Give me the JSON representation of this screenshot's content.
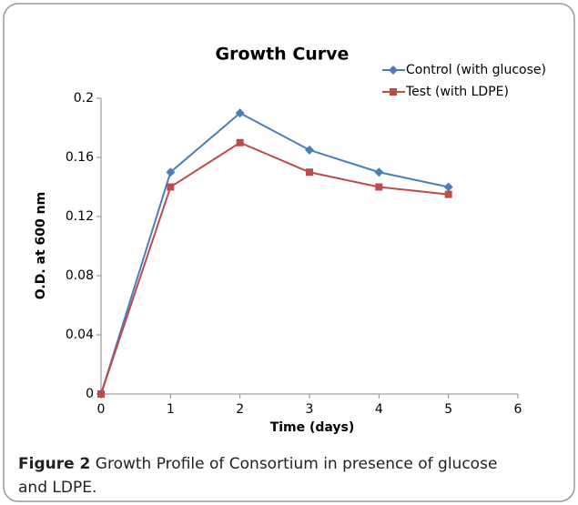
{
  "chart_data": {
    "type": "line",
    "title": "Growth Curve",
    "x_label": "Time (days)",
    "y_label": "O.D. at 600 nm",
    "x": [
      0,
      1,
      2,
      3,
      4,
      5
    ],
    "series": [
      {
        "name": "Control (with glucose)",
        "color": "#4a7ebb",
        "marker": "diamond",
        "values": [
          0,
          0.15,
          0.19,
          0.165,
          0.15,
          0.14
        ]
      },
      {
        "name": "Test (with LDPE)",
        "color": "#be4b48",
        "marker": "square",
        "values": [
          0,
          0.14,
          0.17,
          0.15,
          0.14,
          0.135
        ]
      }
    ],
    "xlim": [
      0,
      6
    ],
    "xticks": [
      0,
      1,
      2,
      3,
      4,
      5,
      6
    ],
    "ylim": [
      0,
      0.2
    ],
    "yticks": [
      0,
      0.04,
      0.08,
      0.12,
      0.16,
      0.2
    ],
    "grid": false,
    "legend": "upper right"
  },
  "caption": {
    "label": "Figure 2",
    "text": "Growth Profile of Consortium in presence of glucose and LDPE."
  }
}
